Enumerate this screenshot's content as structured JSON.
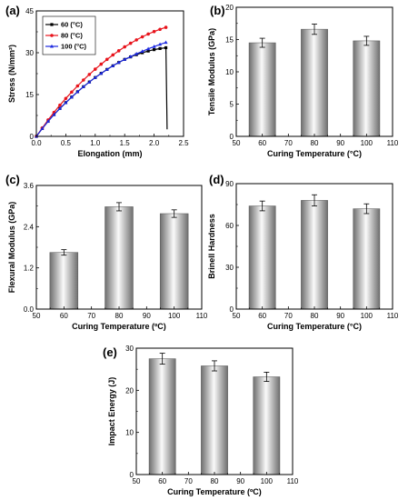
{
  "colors": {
    "series_60": "#000000",
    "series_80": "#e8141c",
    "series_100": "#1c28e0",
    "bar_dark": "#6e6e6e",
    "bar_light": "#fafafa",
    "axis": "#000000"
  },
  "chart_data": [
    {
      "id": "a",
      "panel_label": "(a)",
      "type": "line",
      "xlabel": "Elongation (mm)",
      "ylabel": "Stress (N/mm²)",
      "xlim": [
        0,
        2.5
      ],
      "ylim": [
        0,
        45
      ],
      "xticks": [
        "0.0",
        "0.5",
        "1.0",
        "1.5",
        "2.0",
        "2.5"
      ],
      "yticks": [
        "0",
        "15",
        "30",
        "45"
      ],
      "legend_placement": "top-left",
      "series": [
        {
          "name": "60 (°C)",
          "color": "#000000",
          "marker": "square",
          "x": [
            0,
            0.1,
            0.2,
            0.3,
            0.4,
            0.5,
            0.6,
            0.7,
            0.8,
            0.9,
            1.0,
            1.1,
            1.2,
            1.3,
            1.4,
            1.5,
            1.6,
            1.7,
            1.8,
            1.9,
            2.0,
            2.1,
            2.2,
            2.22
          ],
          "y": [
            0,
            2.8,
            5.4,
            7.8,
            10.0,
            12.1,
            14.1,
            16.0,
            17.8,
            19.5,
            21.1,
            22.6,
            24.0,
            25.3,
            26.5,
            27.6,
            28.5,
            29.3,
            30.0,
            30.6,
            31.1,
            31.5,
            31.8,
            2.5
          ]
        },
        {
          "name": "80 (°C)",
          "color": "#e8141c",
          "marker": "circle",
          "x": [
            0,
            0.1,
            0.2,
            0.3,
            0.4,
            0.5,
            0.6,
            0.7,
            0.8,
            0.9,
            1.0,
            1.1,
            1.2,
            1.3,
            1.4,
            1.5,
            1.6,
            1.7,
            1.8,
            1.9,
            2.0,
            2.1,
            2.2
          ],
          "y": [
            0,
            3.0,
            5.9,
            8.6,
            11.2,
            13.6,
            15.9,
            18.1,
            20.2,
            22.2,
            24.1,
            25.9,
            27.6,
            29.2,
            30.7,
            32.1,
            33.4,
            34.6,
            35.7,
            36.7,
            37.6,
            38.4,
            39.1
          ]
        },
        {
          "name": "100 (°C)",
          "color": "#1c28e0",
          "marker": "triangle",
          "x": [
            0,
            0.1,
            0.2,
            0.3,
            0.4,
            0.5,
            0.6,
            0.7,
            0.8,
            0.9,
            1.0,
            1.1,
            1.2,
            1.3,
            1.4,
            1.5,
            1.6,
            1.7,
            1.8,
            1.9,
            2.0,
            2.1,
            2.2
          ],
          "y": [
            0,
            2.8,
            5.4,
            7.8,
            10.0,
            12.1,
            14.1,
            16.0,
            17.8,
            19.5,
            21.1,
            22.6,
            24.0,
            25.3,
            26.5,
            27.6,
            28.6,
            29.6,
            30.5,
            31.4,
            32.2,
            33.0,
            33.7
          ]
        }
      ]
    },
    {
      "id": "b",
      "panel_label": "(b)",
      "type": "bar",
      "xlabel": "Curing Temperature (°C)",
      "ylabel": "Tensile Modulus (GPa)",
      "xlim": [
        50,
        110
      ],
      "ylim": [
        0,
        20
      ],
      "xticks": [
        "50",
        "60",
        "70",
        "80",
        "90",
        "100",
        "110"
      ],
      "yticks": [
        "0",
        "5",
        "10",
        "15",
        "20"
      ],
      "x": [
        60,
        80,
        100
      ],
      "values": [
        14.5,
        16.6,
        14.8
      ],
      "errors": [
        0.7,
        0.8,
        0.7
      ]
    },
    {
      "id": "c",
      "panel_label": "(c)",
      "type": "bar",
      "xlabel": "Curing Temperature (ºC)",
      "ylabel": "Flexural Modulus (GPa)",
      "xlim": [
        50,
        110
      ],
      "ylim": [
        0,
        3.6
      ],
      "xticks": [
        "50",
        "60",
        "70",
        "80",
        "90",
        "100",
        "110"
      ],
      "yticks": [
        "0.0",
        "1.2",
        "2.4",
        "3.6"
      ],
      "x": [
        60,
        80,
        100
      ],
      "values": [
        1.65,
        2.98,
        2.78
      ],
      "errors": [
        0.08,
        0.12,
        0.11
      ]
    },
    {
      "id": "d",
      "panel_label": "(d)",
      "type": "bar",
      "xlabel": "Curing Temperature (°C)",
      "ylabel": "Brinell Hardness",
      "xlim": [
        50,
        110
      ],
      "ylim": [
        0,
        90
      ],
      "xticks": [
        "50",
        "60",
        "70",
        "80",
        "90",
        "100",
        "110"
      ],
      "yticks": [
        "0",
        "30",
        "60",
        "90"
      ],
      "x": [
        60,
        80,
        100
      ],
      "values": [
        74,
        78,
        72
      ],
      "errors": [
        3.5,
        4,
        3.5
      ]
    },
    {
      "id": "e",
      "panel_label": "(e)",
      "type": "bar",
      "xlabel": "Curing Temperature (ºC)",
      "ylabel": "Impact Energy (J)",
      "xlim": [
        50,
        110
      ],
      "ylim": [
        0,
        30
      ],
      "xticks": [
        "50",
        "60",
        "70",
        "80",
        "90",
        "100",
        "110"
      ],
      "yticks": [
        "0",
        "10",
        "20",
        "30"
      ],
      "x": [
        60,
        80,
        100
      ],
      "values": [
        27.5,
        25.8,
        23.2
      ],
      "errors": [
        1.3,
        1.2,
        1.1
      ]
    }
  ]
}
